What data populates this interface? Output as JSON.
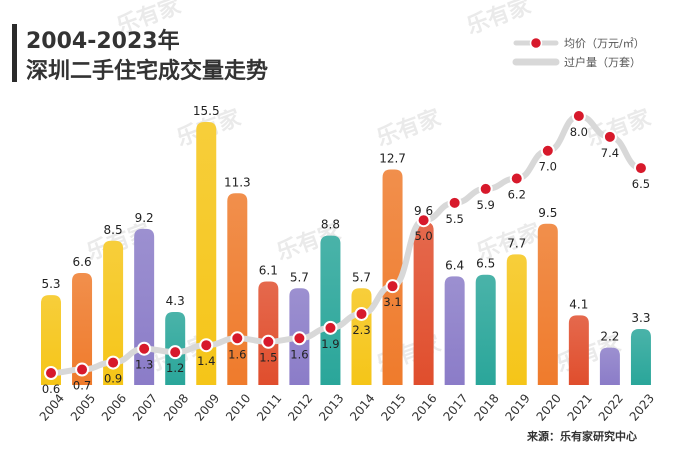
{
  "chart_data": {
    "type": "bar+line",
    "title_line1": "2004-2023年",
    "title_line2": "深圳二手住宅成交量走势",
    "categories": [
      "2004",
      "2005",
      "2006",
      "2007",
      "2008",
      "2009",
      "2010",
      "2011",
      "2012",
      "2013",
      "2014",
      "2015",
      "2016",
      "2017",
      "2018",
      "2019",
      "2020",
      "2021",
      "2022",
      "2023"
    ],
    "series": [
      {
        "name": "过户量（万套）",
        "kind": "bar",
        "values": [
          5.3,
          6.6,
          8.5,
          9.2,
          4.3,
          15.5,
          11.3,
          6.1,
          5.7,
          8.8,
          5.7,
          12.7,
          9.6,
          6.4,
          6.5,
          7.7,
          9.5,
          4.1,
          2.2,
          3.3
        ]
      },
      {
        "name": "均价（万元/㎡）",
        "kind": "line",
        "values": [
          0.6,
          0.7,
          0.9,
          1.3,
          1.2,
          1.4,
          1.6,
          1.5,
          1.6,
          1.9,
          2.3,
          3.1,
          5.0,
          5.5,
          5.9,
          6.2,
          7.0,
          8.0,
          7.4,
          6.5
        ]
      }
    ],
    "bar_colors": [
      "#f5c518",
      "#ef7b2c",
      "#f5c518",
      "#8b7cc8",
      "#2aa69a",
      "#f5c518",
      "#ef7b2c",
      "#e04e2d",
      "#8b7cc8",
      "#2aa69a",
      "#f5c518",
      "#ef7b2c",
      "#e04e2d",
      "#8b7cc8",
      "#2aa69a",
      "#f5c518",
      "#ef7b2c",
      "#e04e2d",
      "#8b7cc8",
      "#2aa69a"
    ],
    "line_color": "#d8d8d8",
    "marker_color": "#d7192b",
    "source": "来源：乐有家研究中心",
    "watermark": "乐有家"
  }
}
